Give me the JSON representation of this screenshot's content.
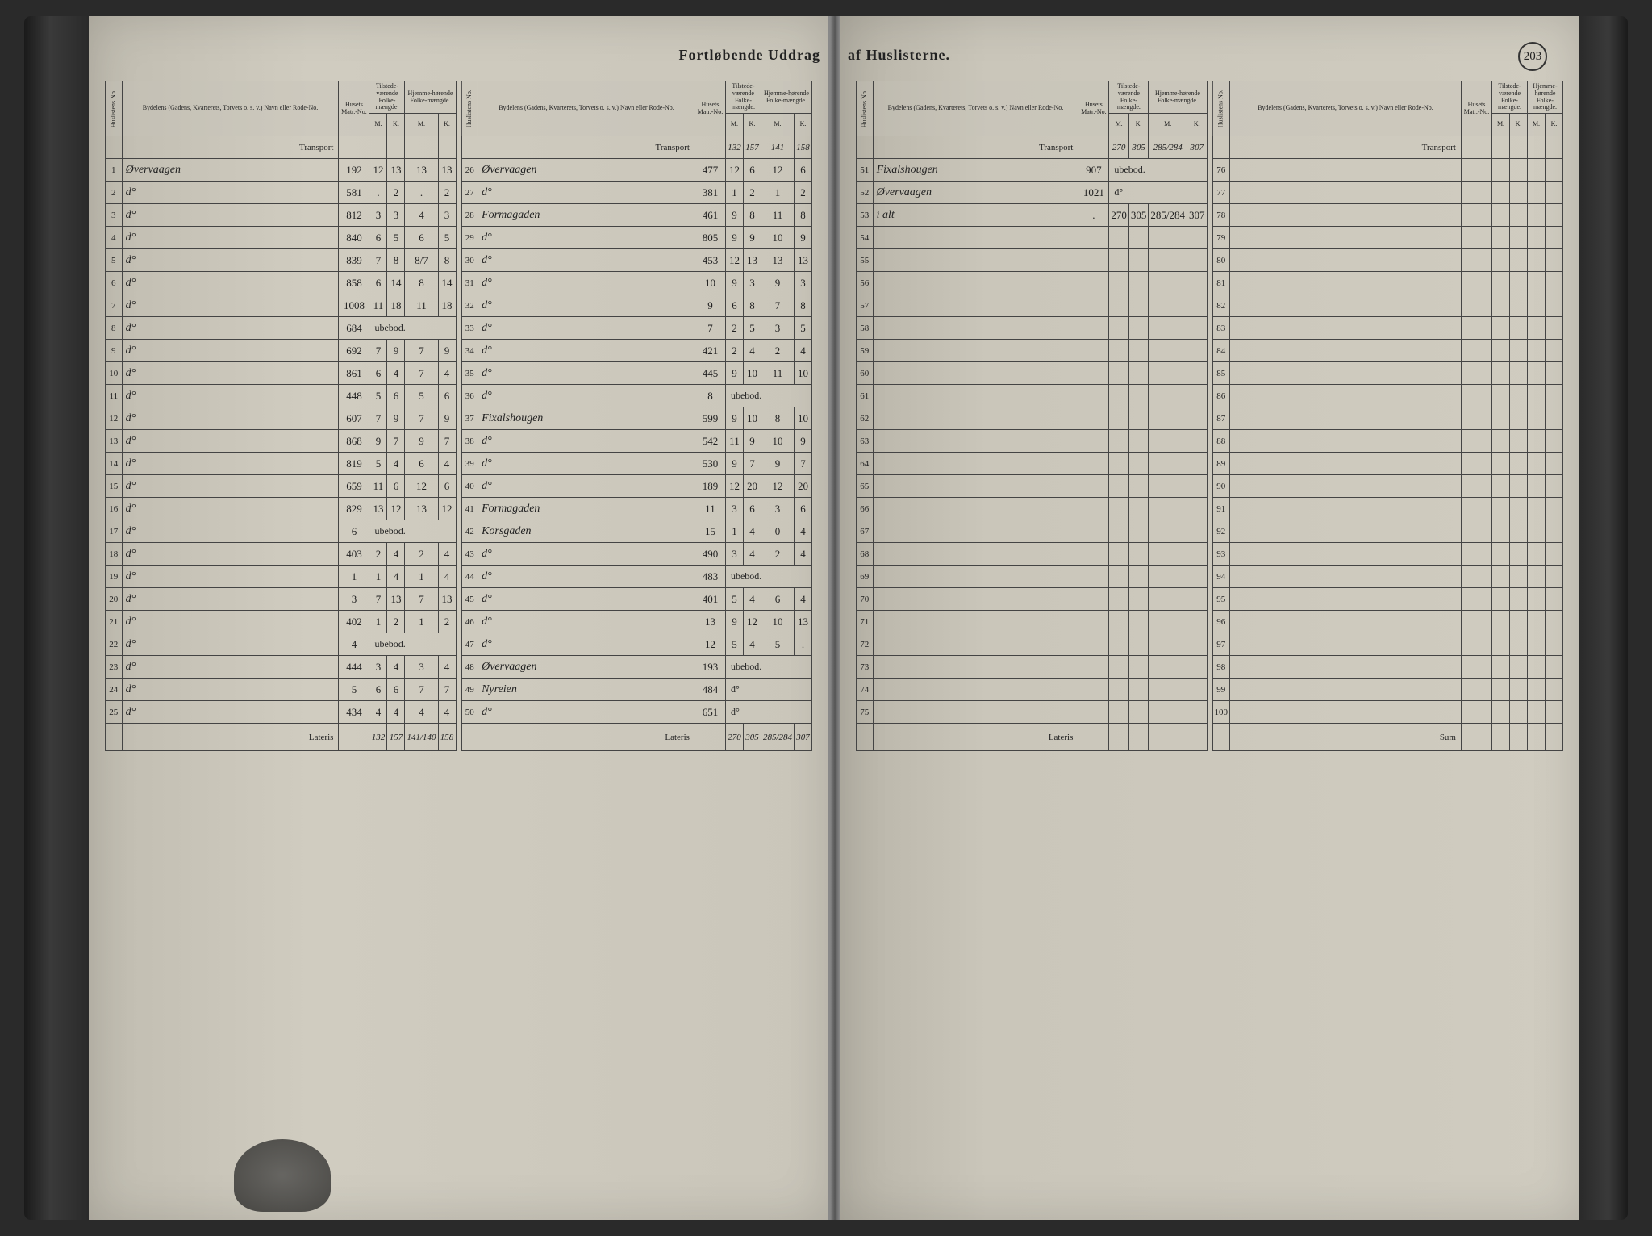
{
  "header": {
    "title_left": "Fortløbende Uddrag",
    "title_right": "af Huslisterne.",
    "page_number": "203"
  },
  "columns": {
    "huslist": "Huslistens No.",
    "bydel": "Bydelens (Gadens, Kvarterets, Torvets o. s. v.) Navn eller Rode-No.",
    "husets": "Husets Matr.-No.",
    "tilstede": "Tilstede-værende Folke-mængde.",
    "hjemme": "Hjemme-hørende Folke-mængde.",
    "m": "M.",
    "k": "K."
  },
  "labels": {
    "transport": "Transport",
    "lateris": "Lateris",
    "sum": "Sum",
    "ubebod": "ubebod."
  },
  "sections": [
    {
      "transport": null,
      "rows": [
        {
          "no": "1",
          "name": "Øvervaagen",
          "matr": "192",
          "m1": "12",
          "k1": "13",
          "m2": "13",
          "k2": "13"
        },
        {
          "no": "2",
          "name": "do",
          "matr": "581",
          "m1": ".",
          "k1": "2",
          "m2": ".",
          "k2": "2"
        },
        {
          "no": "3",
          "name": "do",
          "matr": "812",
          "m1": "3",
          "k1": "3",
          "m2": "4",
          "k2": "3"
        },
        {
          "no": "4",
          "name": "do",
          "matr": "840",
          "m1": "6",
          "k1": "5",
          "m2": "6",
          "k2": "5"
        },
        {
          "no": "5",
          "name": "do",
          "matr": "839",
          "m1": "7",
          "k1": "8",
          "m2": "8/7",
          "k2": "8"
        },
        {
          "no": "6",
          "name": "do",
          "matr": "858",
          "m1": "6",
          "k1": "14",
          "m2": "8",
          "k2": "14"
        },
        {
          "no": "7",
          "name": "do",
          "matr": "1008",
          "m1": "11",
          "k1": "18",
          "m2": "11",
          "k2": "18"
        },
        {
          "no": "8",
          "name": "do",
          "matr": "684",
          "m1": "ubebod",
          "k1": "",
          "m2": "",
          "k2": ""
        },
        {
          "no": "9",
          "name": "do",
          "matr": "692",
          "m1": "7",
          "k1": "9",
          "m2": "7",
          "k2": "9"
        },
        {
          "no": "10",
          "name": "do",
          "matr": "861",
          "m1": "6",
          "k1": "4",
          "m2": "7",
          "k2": "4"
        },
        {
          "no": "11",
          "name": "do",
          "matr": "448",
          "m1": "5",
          "k1": "6",
          "m2": "5",
          "k2": "6"
        },
        {
          "no": "12",
          "name": "do",
          "matr": "607",
          "m1": "7",
          "k1": "9",
          "m2": "7",
          "k2": "9"
        },
        {
          "no": "13",
          "name": "do",
          "matr": "868",
          "m1": "9",
          "k1": "7",
          "m2": "9",
          "k2": "7"
        },
        {
          "no": "14",
          "name": "do",
          "matr": "819",
          "m1": "5",
          "k1": "4",
          "m2": "6",
          "k2": "4"
        },
        {
          "no": "15",
          "name": "do",
          "matr": "659",
          "m1": "11",
          "k1": "6",
          "m2": "12",
          "k2": "6"
        },
        {
          "no": "16",
          "name": "do",
          "matr": "829",
          "m1": "13",
          "k1": "12",
          "m2": "13",
          "k2": "12"
        },
        {
          "no": "17",
          "name": "do",
          "matr": "6",
          "m1": "ubebod",
          "k1": "",
          "m2": ".",
          "k2": ""
        },
        {
          "no": "18",
          "name": "do",
          "matr": "403",
          "m1": "2",
          "k1": "4",
          "m2": "2",
          "k2": "4"
        },
        {
          "no": "19",
          "name": "do",
          "matr": "1",
          "m1": "1",
          "k1": "4",
          "m2": "1",
          "k2": "4"
        },
        {
          "no": "20",
          "name": "do",
          "matr": "3",
          "m1": "7",
          "k1": "13",
          "m2": "7",
          "k2": "13"
        },
        {
          "no": "21",
          "name": "do",
          "matr": "402",
          "m1": "1",
          "k1": "2",
          "m2": "1",
          "k2": "2"
        },
        {
          "no": "22",
          "name": "do",
          "matr": "4",
          "m1": "ubebod",
          "k1": "",
          "m2": "",
          "k2": ""
        },
        {
          "no": "23",
          "name": "do",
          "matr": "444",
          "m1": "3",
          "k1": "4",
          "m2": "3",
          "k2": "4"
        },
        {
          "no": "24",
          "name": "do",
          "matr": "5",
          "m1": "6",
          "k1": "6",
          "m2": "7",
          "k2": "7"
        },
        {
          "no": "25",
          "name": "do",
          "matr": "434",
          "m1": "4",
          "k1": "4",
          "m2": "4",
          "k2": "4"
        }
      ],
      "lateris": {
        "m1": "132",
        "k1": "157",
        "m2": "141/140",
        "k2": "158"
      }
    },
    {
      "transport": {
        "m1": "132",
        "k1": "157",
        "m2": "141",
        "k2": "158"
      },
      "rows": [
        {
          "no": "26",
          "name": "Øvervaagen",
          "matr": "477",
          "m1": "12",
          "k1": "6",
          "m2": "12",
          "k2": "6"
        },
        {
          "no": "27",
          "name": "do",
          "matr": "381",
          "m1": "1",
          "k1": "2",
          "m2": "1",
          "k2": "2"
        },
        {
          "no": "28",
          "name": "Formagaden",
          "matr": "461",
          "m1": "9",
          "k1": "8",
          "m2": "11",
          "k2": "8"
        },
        {
          "no": "29",
          "name": "do",
          "matr": "805",
          "m1": "9",
          "k1": "9",
          "m2": "10",
          "k2": "9"
        },
        {
          "no": "30",
          "name": "do",
          "matr": "453",
          "m1": "12",
          "k1": "13",
          "m2": "13",
          "k2": "13"
        },
        {
          "no": "31",
          "name": "do",
          "matr": "10",
          "m1": "9",
          "k1": "3",
          "m2": "9",
          "k2": "3"
        },
        {
          "no": "32",
          "name": "do",
          "matr": "9",
          "m1": "6",
          "k1": "8",
          "m2": "7",
          "k2": "8"
        },
        {
          "no": "33",
          "name": "do",
          "matr": "7",
          "m1": "2",
          "k1": "5",
          "m2": "3",
          "k2": "5"
        },
        {
          "no": "34",
          "name": "do",
          "matr": "421",
          "m1": "2",
          "k1": "4",
          "m2": "2",
          "k2": "4"
        },
        {
          "no": "35",
          "name": "do",
          "matr": "445",
          "m1": "9",
          "k1": "10",
          "m2": "11",
          "k2": "10"
        },
        {
          "no": "36",
          "name": "do",
          "matr": "8",
          "m1": "ubebod",
          "k1": "",
          "m2": "",
          "k2": ""
        },
        {
          "no": "37",
          "name": "Fixalshougen",
          "matr": "599",
          "m1": "9",
          "k1": "10",
          "m2": "8",
          "k2": "10"
        },
        {
          "no": "38",
          "name": "do",
          "matr": "542",
          "m1": "11",
          "k1": "9",
          "m2": "10",
          "k2": "9"
        },
        {
          "no": "39",
          "name": "do",
          "matr": "530",
          "m1": "9",
          "k1": "7",
          "m2": "9",
          "k2": "7"
        },
        {
          "no": "40",
          "name": "do",
          "matr": "189",
          "m1": "12",
          "k1": "20",
          "m2": "12",
          "k2": "20"
        },
        {
          "no": "41",
          "name": "Formagaden",
          "matr": "11",
          "m1": "3",
          "k1": "6",
          "m2": "3",
          "k2": "6"
        },
        {
          "no": "42",
          "name": "Korsgaden",
          "matr": "15",
          "m1": "1",
          "k1": "4",
          "m2": "0",
          "k2": "4"
        },
        {
          "no": "43",
          "name": "do",
          "matr": "490",
          "m1": "3",
          "k1": "4",
          "m2": "2",
          "k2": "4"
        },
        {
          "no": "44",
          "name": "do",
          "matr": "483",
          "m1": "ubebod",
          "k1": "",
          "m2": "",
          "k2": ""
        },
        {
          "no": "45",
          "name": "do",
          "matr": "401",
          "m1": "5",
          "k1": "4",
          "m2": "6",
          "k2": "4"
        },
        {
          "no": "46",
          "name": "do",
          "matr": "13",
          "m1": "9",
          "k1": "12",
          "m2": "10",
          "k2": "13"
        },
        {
          "no": "47",
          "name": "do",
          "matr": "12",
          "m1": "5",
          "k1": "4",
          "m2": "5",
          "k2": "."
        },
        {
          "no": "48",
          "name": "Øvervaagen",
          "matr": "193",
          "m1": "ubebod",
          "k1": "",
          "m2": "",
          "k2": ""
        },
        {
          "no": "49",
          "name": "Nyreien",
          "matr": "484",
          "m1": "do",
          "k1": "",
          "m2": "",
          "k2": ""
        },
        {
          "no": "50",
          "name": "do",
          "matr": "651",
          "m1": "do",
          "k1": "",
          "m2": "",
          "k2": ""
        }
      ],
      "lateris": {
        "m1": "270",
        "k1": "305",
        "m2": "285/284",
        "k2": "307"
      }
    },
    {
      "transport": {
        "m1": "270",
        "k1": "305",
        "m2": "285/284",
        "k2": "307"
      },
      "rows": [
        {
          "no": "51",
          "name": "Fixalshougen",
          "matr": "907",
          "m1": "ubebod",
          "k1": "",
          "m2": "",
          "k2": ""
        },
        {
          "no": "52",
          "name": "Øvervaagen",
          "matr": "1021",
          "m1": "do",
          "k1": "",
          "m2": "",
          "k2": ""
        },
        {
          "no": "53",
          "name": "i alt",
          "matr": ".",
          "m1": "270",
          "k1": "305",
          "m2": "285/284",
          "k2": "307"
        },
        {
          "no": "54",
          "name": "",
          "matr": "",
          "m1": "",
          "k1": "",
          "m2": "",
          "k2": ""
        },
        {
          "no": "55",
          "name": "",
          "matr": "",
          "m1": "",
          "k1": "",
          "m2": "",
          "k2": ""
        },
        {
          "no": "56",
          "name": "",
          "matr": "",
          "m1": "",
          "k1": "",
          "m2": "",
          "k2": ""
        },
        {
          "no": "57",
          "name": "",
          "matr": "",
          "m1": "",
          "k1": "",
          "m2": "",
          "k2": ""
        },
        {
          "no": "58",
          "name": "",
          "matr": "",
          "m1": "",
          "k1": "",
          "m2": "",
          "k2": ""
        },
        {
          "no": "59",
          "name": "",
          "matr": "",
          "m1": "",
          "k1": "",
          "m2": "",
          "k2": ""
        },
        {
          "no": "60",
          "name": "",
          "matr": "",
          "m1": "",
          "k1": "",
          "m2": "",
          "k2": ""
        },
        {
          "no": "61",
          "name": "",
          "matr": "",
          "m1": "",
          "k1": "",
          "m2": "",
          "k2": ""
        },
        {
          "no": "62",
          "name": "",
          "matr": "",
          "m1": "",
          "k1": "",
          "m2": "",
          "k2": ""
        },
        {
          "no": "63",
          "name": "",
          "matr": "",
          "m1": "",
          "k1": "",
          "m2": "",
          "k2": ""
        },
        {
          "no": "64",
          "name": "",
          "matr": "",
          "m1": "",
          "k1": "",
          "m2": "",
          "k2": ""
        },
        {
          "no": "65",
          "name": "",
          "matr": "",
          "m1": "",
          "k1": "",
          "m2": "",
          "k2": ""
        },
        {
          "no": "66",
          "name": "",
          "matr": "",
          "m1": "",
          "k1": "",
          "m2": "",
          "k2": ""
        },
        {
          "no": "67",
          "name": "",
          "matr": "",
          "m1": "",
          "k1": "",
          "m2": "",
          "k2": ""
        },
        {
          "no": "68",
          "name": "",
          "matr": "",
          "m1": "",
          "k1": "",
          "m2": "",
          "k2": ""
        },
        {
          "no": "69",
          "name": "",
          "matr": "",
          "m1": "",
          "k1": "",
          "m2": "",
          "k2": ""
        },
        {
          "no": "70",
          "name": "",
          "matr": "",
          "m1": "",
          "k1": "",
          "m2": "",
          "k2": ""
        },
        {
          "no": "71",
          "name": "",
          "matr": "",
          "m1": "",
          "k1": "",
          "m2": "",
          "k2": ""
        },
        {
          "no": "72",
          "name": "",
          "matr": "",
          "m1": "",
          "k1": "",
          "m2": "",
          "k2": ""
        },
        {
          "no": "73",
          "name": "",
          "matr": "",
          "m1": "",
          "k1": "",
          "m2": "",
          "k2": ""
        },
        {
          "no": "74",
          "name": "",
          "matr": "",
          "m1": "",
          "k1": "",
          "m2": "",
          "k2": ""
        },
        {
          "no": "75",
          "name": "",
          "matr": "",
          "m1": "",
          "k1": "",
          "m2": "",
          "k2": ""
        }
      ],
      "lateris": {
        "m1": "",
        "k1": "",
        "m2": "",
        "k2": ""
      }
    },
    {
      "transport": {
        "m1": "",
        "k1": "",
        "m2": "",
        "k2": ""
      },
      "rows": [
        {
          "no": "76",
          "name": "",
          "matr": "",
          "m1": "",
          "k1": "",
          "m2": "",
          "k2": ""
        },
        {
          "no": "77",
          "name": "",
          "matr": "",
          "m1": "",
          "k1": "",
          "m2": "",
          "k2": ""
        },
        {
          "no": "78",
          "name": "",
          "matr": "",
          "m1": "",
          "k1": "",
          "m2": "",
          "k2": ""
        },
        {
          "no": "79",
          "name": "",
          "matr": "",
          "m1": "",
          "k1": "",
          "m2": "",
          "k2": ""
        },
        {
          "no": "80",
          "name": "",
          "matr": "",
          "m1": "",
          "k1": "",
          "m2": "",
          "k2": ""
        },
        {
          "no": "81",
          "name": "",
          "matr": "",
          "m1": "",
          "k1": "",
          "m2": "",
          "k2": ""
        },
        {
          "no": "82",
          "name": "",
          "matr": "",
          "m1": "",
          "k1": "",
          "m2": "",
          "k2": ""
        },
        {
          "no": "83",
          "name": "",
          "matr": "",
          "m1": "",
          "k1": "",
          "m2": "",
          "k2": ""
        },
        {
          "no": "84",
          "name": "",
          "matr": "",
          "m1": "",
          "k1": "",
          "m2": "",
          "k2": ""
        },
        {
          "no": "85",
          "name": "",
          "matr": "",
          "m1": "",
          "k1": "",
          "m2": "",
          "k2": ""
        },
        {
          "no": "86",
          "name": "",
          "matr": "",
          "m1": "",
          "k1": "",
          "m2": "",
          "k2": ""
        },
        {
          "no": "87",
          "name": "",
          "matr": "",
          "m1": "",
          "k1": "",
          "m2": "",
          "k2": ""
        },
        {
          "no": "88",
          "name": "",
          "matr": "",
          "m1": "",
          "k1": "",
          "m2": "",
          "k2": ""
        },
        {
          "no": "89",
          "name": "",
          "matr": "",
          "m1": "",
          "k1": "",
          "m2": "",
          "k2": ""
        },
        {
          "no": "90",
          "name": "",
          "matr": "",
          "m1": "",
          "k1": "",
          "m2": "",
          "k2": ""
        },
        {
          "no": "91",
          "name": "",
          "matr": "",
          "m1": "",
          "k1": "",
          "m2": "",
          "k2": ""
        },
        {
          "no": "92",
          "name": "",
          "matr": "",
          "m1": "",
          "k1": "",
          "m2": "",
          "k2": ""
        },
        {
          "no": "93",
          "name": "",
          "matr": "",
          "m1": "",
          "k1": "",
          "m2": "",
          "k2": ""
        },
        {
          "no": "94",
          "name": "",
          "matr": "",
          "m1": "",
          "k1": "",
          "m2": "",
          "k2": ""
        },
        {
          "no": "95",
          "name": "",
          "matr": "",
          "m1": "",
          "k1": "",
          "m2": "",
          "k2": ""
        },
        {
          "no": "96",
          "name": "",
          "matr": "",
          "m1": "",
          "k1": "",
          "m2": "",
          "k2": ""
        },
        {
          "no": "97",
          "name": "",
          "matr": "",
          "m1": "",
          "k1": "",
          "m2": "",
          "k2": ""
        },
        {
          "no": "98",
          "name": "",
          "matr": "",
          "m1": "",
          "k1": "",
          "m2": "",
          "k2": ""
        },
        {
          "no": "99",
          "name": "",
          "matr": "",
          "m1": "",
          "k1": "",
          "m2": "",
          "k2": ""
        },
        {
          "no": "100",
          "name": "",
          "matr": "",
          "m1": "",
          "k1": "",
          "m2": "",
          "k2": ""
        }
      ],
      "lateris": {
        "label": "Sum",
        "m1": "",
        "k1": "",
        "m2": "",
        "k2": ""
      }
    }
  ]
}
